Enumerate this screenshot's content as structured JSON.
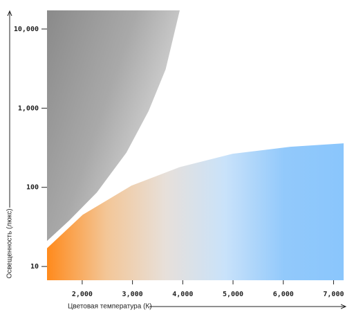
{
  "chart_data": {
    "type": "area",
    "x_label": "Цветовая температура (К)",
    "y_label": "Освещенность (люкс)",
    "xlim": [
      1300,
      7200
    ],
    "ylim": [
      6.7,
      17200
    ],
    "y_log": true,
    "xticks": [
      {
        "value": 2000,
        "label": "2,000"
      },
      {
        "value": 3000,
        "label": "3,000"
      },
      {
        "value": 4000,
        "label": "4,000"
      },
      {
        "value": 5000,
        "label": "5,000"
      },
      {
        "value": 6000,
        "label": "6,000"
      },
      {
        "value": 7000,
        "label": "7,000"
      }
    ],
    "yticks": [
      10,
      100,
      {
        "value": 1000,
        "label": "1,000"
      },
      {
        "value": 10000,
        "label": "10,000"
      }
    ],
    "series": [
      {
        "fill_to": "top",
        "gradient": "diagonal",
        "colors": [
          "#8a8a8a",
          "#a9a9a9",
          "#e4e4e4"
        ],
        "x": [
          1300,
          1740,
          2290,
          2880,
          3320,
          3660,
          3940
        ],
        "values": [
          21,
          38,
          86,
          275,
          920,
          3100,
          17200
        ]
      },
      {
        "fill_to": "bottom",
        "gradient": "horizontal",
        "colors": [
          "#ff8a1c",
          "#f3c697",
          "#e7e0da",
          "#c9e2fa",
          "#92c9fb",
          "#8ac6fc"
        ],
        "x": [
          1300,
          2010,
          2980,
          3940,
          4990,
          6140,
          7200
        ],
        "values": [
          17,
          45,
          105,
          180,
          265,
          325,
          360
        ]
      }
    ]
  }
}
